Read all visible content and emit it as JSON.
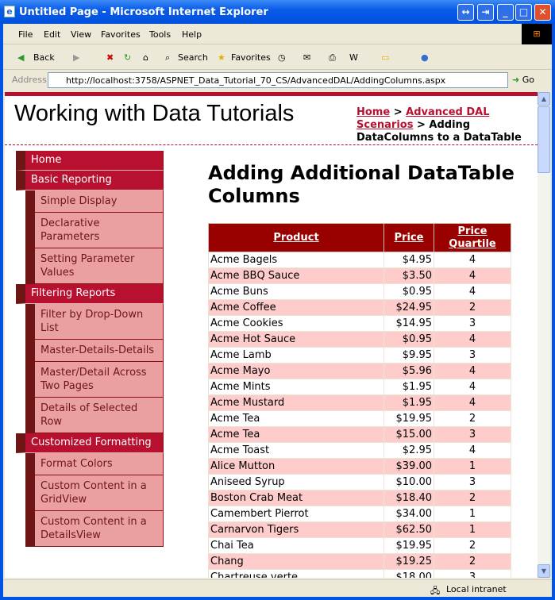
{
  "window": {
    "title": "Untitled Page - Microsoft Internet Explorer"
  },
  "menu": [
    "File",
    "Edit",
    "View",
    "Favorites",
    "Tools",
    "Help"
  ],
  "toolbar": {
    "back": "Back",
    "search": "Search",
    "favorites": "Favorites"
  },
  "address": {
    "label": "Address",
    "url": "http://localhost:3758/ASPNET_Data_Tutorial_70_CS/AdvancedDAL/AddingColumns.aspx",
    "go": "Go"
  },
  "site": {
    "title": "Working with Data Tutorials"
  },
  "breadcrumb": {
    "home": "Home",
    "sep": " > ",
    "section": "Advanced DAL Scenarios",
    "current": "Adding DataColumns to a DataTable"
  },
  "nav": [
    {
      "label": "Home",
      "level": "top"
    },
    {
      "label": "Basic Reporting",
      "level": "top"
    },
    {
      "label": "Simple Display",
      "level": "sub"
    },
    {
      "label": "Declarative Parameters",
      "level": "sub"
    },
    {
      "label": "Setting Parameter Values",
      "level": "sub"
    },
    {
      "label": "Filtering Reports",
      "level": "top"
    },
    {
      "label": "Filter by Drop-Down List",
      "level": "sub"
    },
    {
      "label": "Master-Details-Details",
      "level": "sub"
    },
    {
      "label": "Master/Detail Across Two Pages",
      "level": "sub"
    },
    {
      "label": "Details of Selected Row",
      "level": "sub"
    },
    {
      "label": "Customized Formatting",
      "level": "top"
    },
    {
      "label": "Format Colors",
      "level": "sub"
    },
    {
      "label": "Custom Content in a GridView",
      "level": "sub"
    },
    {
      "label": "Custom Content in a DetailsView",
      "level": "sub"
    }
  ],
  "main": {
    "title": "Adding Additional DataTable Columns"
  },
  "grid": {
    "headers": [
      "Product",
      "Price",
      "Price Quartile"
    ],
    "rows": [
      [
        "Acme Bagels",
        "$4.95",
        "4"
      ],
      [
        "Acme BBQ Sauce",
        "$3.50",
        "4"
      ],
      [
        "Acme Buns",
        "$0.95",
        "4"
      ],
      [
        "Acme Coffee",
        "$24.95",
        "2"
      ],
      [
        "Acme Cookies",
        "$14.95",
        "3"
      ],
      [
        "Acme Hot Sauce",
        "$0.95",
        "4"
      ],
      [
        "Acme Lamb",
        "$9.95",
        "3"
      ],
      [
        "Acme Mayo",
        "$5.96",
        "4"
      ],
      [
        "Acme Mints",
        "$1.95",
        "4"
      ],
      [
        "Acme Mustard",
        "$1.95",
        "4"
      ],
      [
        "Acme Tea",
        "$19.95",
        "2"
      ],
      [
        "Acme Tea",
        "$15.00",
        "3"
      ],
      [
        "Acme Toast",
        "$2.95",
        "4"
      ],
      [
        "Alice Mutton",
        "$39.00",
        "1"
      ],
      [
        "Aniseed Syrup",
        "$10.00",
        "3"
      ],
      [
        "Boston Crab Meat",
        "$18.40",
        "2"
      ],
      [
        "Camembert Pierrot",
        "$34.00",
        "1"
      ],
      [
        "Carnarvon Tigers",
        "$62.50",
        "1"
      ],
      [
        "Chai Tea",
        "$19.95",
        "2"
      ],
      [
        "Chang",
        "$19.25",
        "2"
      ],
      [
        "Chartreuse verte",
        "$18.00",
        "3"
      ]
    ]
  },
  "status": {
    "zone": "Local intranet"
  },
  "colors": {
    "header": "#990000",
    "nav": "#b8112f",
    "navSub": "#eaa0a0",
    "altRow": "#ffcccc"
  }
}
